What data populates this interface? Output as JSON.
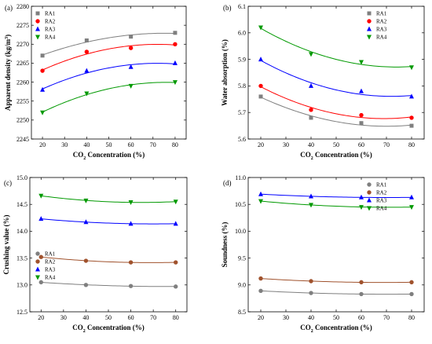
{
  "figure": {
    "background": "#ffffff"
  },
  "chart_data": [
    {
      "type": "scatter",
      "panel_label": "(a)",
      "xlabel": "CO₂ Concentration (%)",
      "ylabel": "Apparent density (kg/m³)",
      "x": [
        20,
        40,
        60,
        80
      ],
      "xlim": [
        15,
        85
      ],
      "xticks": [
        "20",
        "30",
        "40",
        "50",
        "60",
        "70",
        "80"
      ],
      "ylim": [
        2245,
        2280
      ],
      "yticks": [
        "2245",
        "2250",
        "2255",
        "2260",
        "2265",
        "2270",
        "2275",
        "2280"
      ],
      "legend_position": "top-left",
      "grid": false,
      "series": [
        {
          "name": "RA1",
          "color": "#7f7f7f",
          "marker": "square",
          "values": [
            2267,
            2271,
            2272,
            2273
          ]
        },
        {
          "name": "RA2",
          "color": "#ff0000",
          "marker": "circle",
          "values": [
            2263,
            2268,
            2269,
            2270
          ]
        },
        {
          "name": "RA3",
          "color": "#0000ff",
          "marker": "triangle-up",
          "values": [
            2258,
            2263,
            2264,
            2265
          ]
        },
        {
          "name": "RA4",
          "color": "#009900",
          "marker": "triangle-down",
          "values": [
            2252,
            2257,
            2259,
            2260
          ]
        }
      ]
    },
    {
      "type": "scatter",
      "panel_label": "(b)",
      "xlabel": "CO₂ Concentration (%)",
      "ylabel": "Water absorption (%)",
      "x": [
        20,
        40,
        60,
        80
      ],
      "xlim": [
        15,
        85
      ],
      "xticks": [
        "20",
        "30",
        "40",
        "50",
        "60",
        "70",
        "80"
      ],
      "ylim": [
        5.6,
        6.1
      ],
      "yticks": [
        "5.6",
        "5.7",
        "5.8",
        "5.9",
        "6.0",
        "6.1"
      ],
      "legend_position": "top-right",
      "grid": false,
      "series": [
        {
          "name": "RA1",
          "color": "#7f7f7f",
          "marker": "square",
          "values": [
            5.76,
            5.68,
            5.66,
            5.65
          ]
        },
        {
          "name": "RA2",
          "color": "#ff0000",
          "marker": "circle",
          "values": [
            5.8,
            5.71,
            5.69,
            5.68
          ]
        },
        {
          "name": "RA3",
          "color": "#0000ff",
          "marker": "triangle-up",
          "values": [
            5.9,
            5.8,
            5.78,
            5.76
          ]
        },
        {
          "name": "RA4",
          "color": "#009900",
          "marker": "triangle-down",
          "values": [
            6.02,
            5.92,
            5.89,
            5.87
          ]
        }
      ]
    },
    {
      "type": "scatter",
      "panel_label": "(c)",
      "xlabel": "CO₂ Concentration (%)",
      "ylabel": "Crushing value (%)",
      "x": [
        20,
        40,
        60,
        80
      ],
      "xlim": [
        15,
        85
      ],
      "xticks": [
        "20",
        "30",
        "40",
        "50",
        "60",
        "70",
        "80"
      ],
      "ylim": [
        12.5,
        15.0
      ],
      "yticks": [
        "12.5",
        "13.0",
        "13.5",
        "14.0",
        "14.5",
        "15.0"
      ],
      "legend_position": "center-left",
      "grid": false,
      "series": [
        {
          "name": "RA1",
          "color": "#7f7f7f",
          "marker": "circle",
          "values": [
            13.05,
            13.0,
            12.98,
            12.97
          ]
        },
        {
          "name": "RA2",
          "color": "#a0522d",
          "marker": "circle",
          "values": [
            13.52,
            13.45,
            13.42,
            13.42
          ]
        },
        {
          "name": "RA3",
          "color": "#0000ff",
          "marker": "triangle-up",
          "values": [
            14.23,
            14.17,
            14.14,
            14.14
          ]
        },
        {
          "name": "RA4",
          "color": "#009900",
          "marker": "triangle-down",
          "values": [
            14.66,
            14.57,
            14.54,
            14.55
          ]
        }
      ]
    },
    {
      "type": "scatter",
      "panel_label": "(d)",
      "xlabel": "CO₂ Concentration (%)",
      "ylabel": "Soundness (%)",
      "x": [
        20,
        40,
        60,
        80
      ],
      "xlim": [
        15,
        85
      ],
      "xticks": [
        "20",
        "30",
        "40",
        "50",
        "60",
        "70",
        "80"
      ],
      "ylim": [
        8.5,
        11.0
      ],
      "yticks": [
        "8.5",
        "9.0",
        "9.5",
        "10.0",
        "10.5",
        "11.0"
      ],
      "legend_position": "top-right",
      "grid": false,
      "series": [
        {
          "name": "RA1",
          "color": "#7f7f7f",
          "marker": "circle",
          "values": [
            8.89,
            8.85,
            8.83,
            8.83
          ]
        },
        {
          "name": "RA2",
          "color": "#a0522d",
          "marker": "circle",
          "values": [
            9.12,
            9.07,
            9.05,
            9.05
          ]
        },
        {
          "name": "RA3",
          "color": "#0000ff",
          "marker": "triangle-up",
          "values": [
            10.69,
            10.65,
            10.63,
            10.63
          ]
        },
        {
          "name": "RA4",
          "color": "#009900",
          "marker": "triangle-down",
          "values": [
            10.56,
            10.49,
            10.45,
            10.45
          ]
        }
      ]
    }
  ]
}
